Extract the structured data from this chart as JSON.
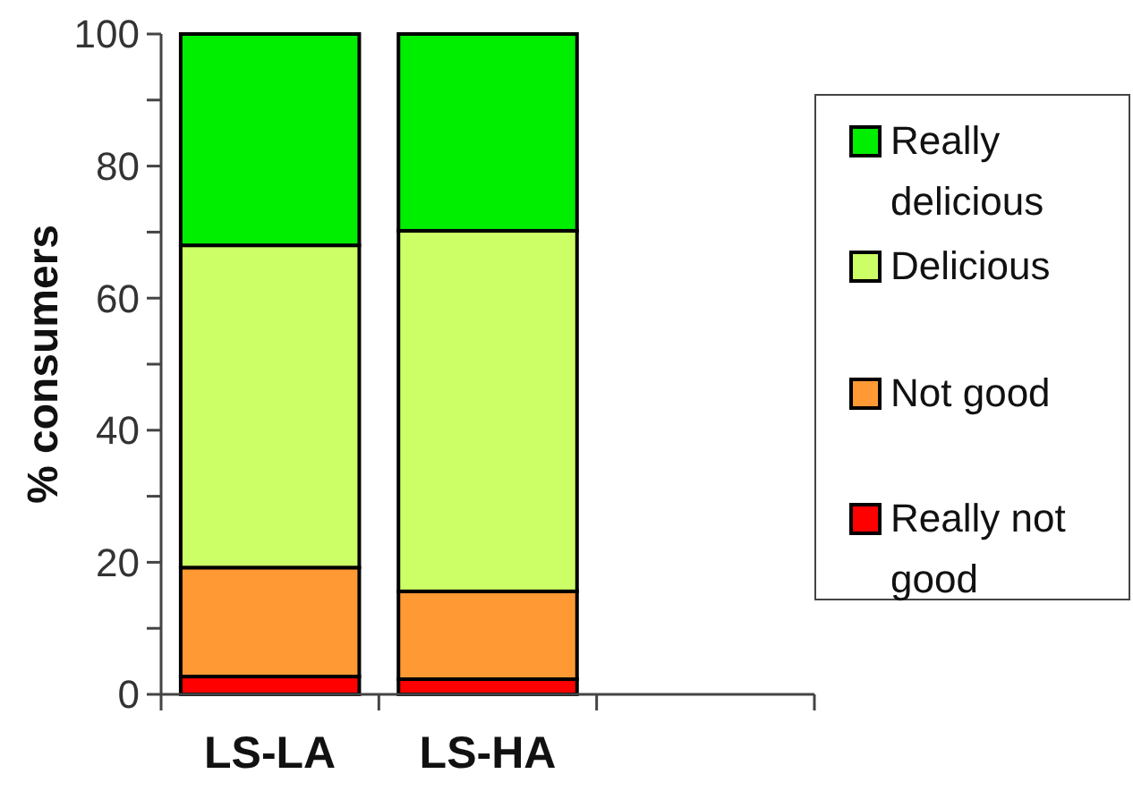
{
  "chart_data": {
    "type": "bar",
    "stacked": true,
    "ylabel": "% consumers",
    "categories": [
      "LS-LA",
      "LS-HA",
      null
    ],
    "series": [
      {
        "name": "Really not good",
        "color": "#ff0000",
        "values": [
          2.7,
          2.3,
          null
        ]
      },
      {
        "name": "Not good",
        "color": "#ff9933",
        "values": [
          16.5,
          13.3,
          null
        ]
      },
      {
        "name": "Delicious",
        "color": "#ccff66",
        "values": [
          48.8,
          54.6,
          null
        ]
      },
      {
        "name": "Really delicious",
        "color": "#00ee00",
        "values": [
          32.0,
          29.8,
          null
        ]
      }
    ],
    "ylim": [
      0,
      100
    ],
    "yticks": [
      0,
      {
        "value": 10,
        "label": null
      },
      20,
      {
        "value": 30,
        "label": null
      },
      40,
      {
        "value": 50,
        "label": null
      },
      60,
      {
        "value": 70,
        "label": null
      },
      80,
      {
        "value": 90,
        "label": null
      },
      100
    ],
    "grid": false,
    "legend": "right"
  }
}
